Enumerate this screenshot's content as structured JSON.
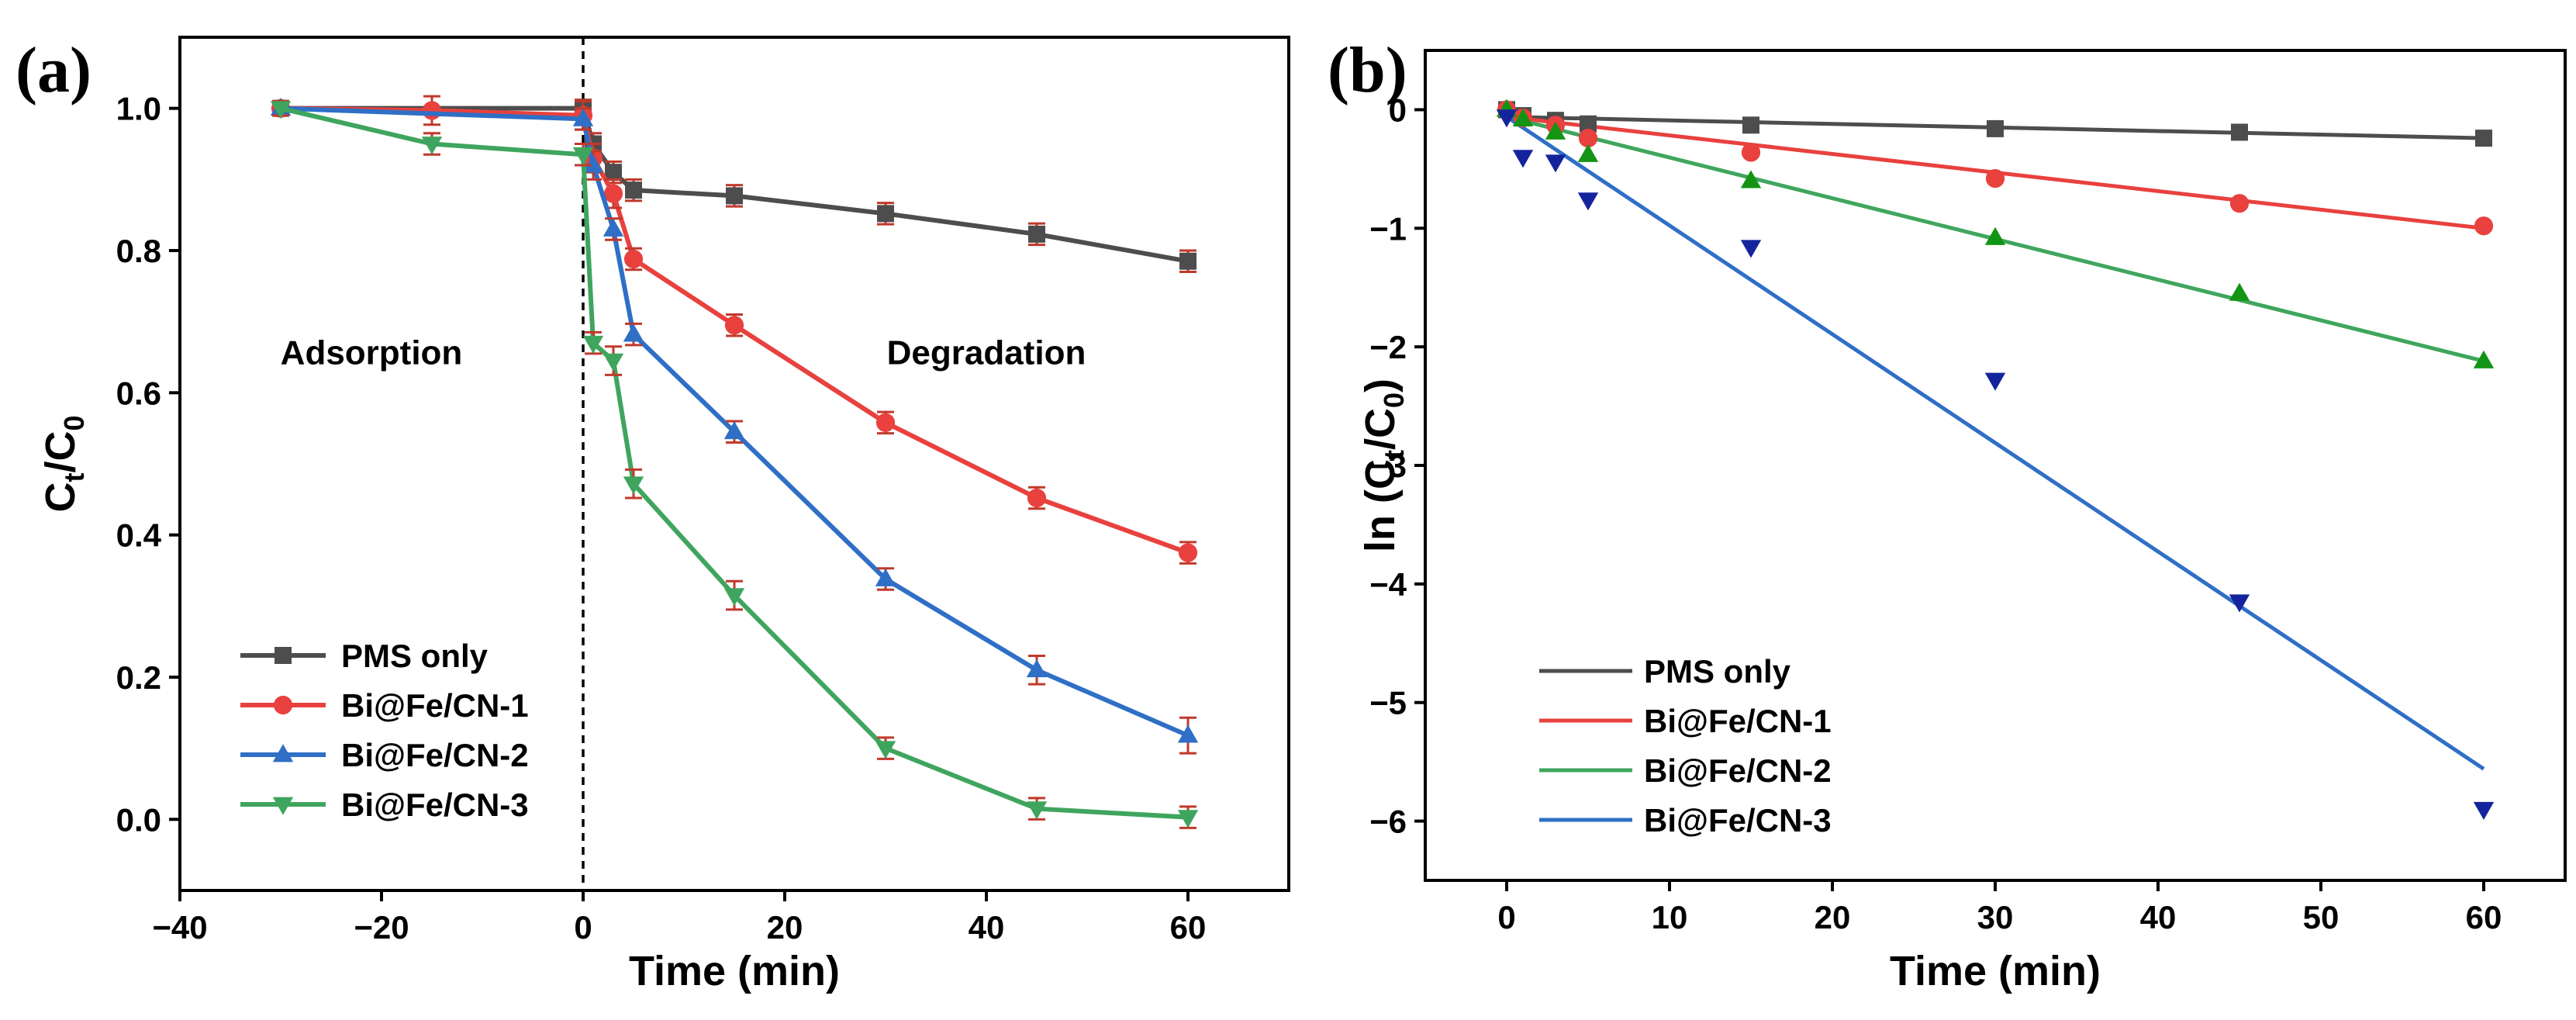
{
  "chart_data": [
    {
      "panel_label": "(a)",
      "type": "line",
      "xlabel": "Time (min)",
      "ylabel": {
        "main": "C",
        "sub1": "t",
        "mid": "/C",
        "sub2": "0"
      },
      "xlim": [
        -40,
        70
      ],
      "ylim": [
        -0.1,
        1.1
      ],
      "xticks": [
        -40,
        -20,
        0,
        20,
        40,
        60
      ],
      "xtick_labels": [
        "−40",
        "−20",
        "0",
        "20",
        "40",
        "60"
      ],
      "yticks": [
        0.0,
        0.2,
        0.4,
        0.6,
        0.8,
        1.0
      ],
      "ytick_labels": [
        "0.0",
        "0.2",
        "0.4",
        "0.6",
        "0.8",
        "1.0"
      ],
      "divider_x": 0,
      "annotations": [
        {
          "text": "Adsorption",
          "x": -21,
          "y": 0.64
        },
        {
          "text": "Degradation",
          "x": 40,
          "y": 0.64
        }
      ],
      "legend_position": "bottom-left",
      "series": [
        {
          "name": "PMS only",
          "color": "#4d4d4d",
          "marker": "square",
          "x": [
            -30,
            0,
            1,
            3,
            5,
            15,
            30,
            45,
            60
          ],
          "y": [
            1.0,
            1.0,
            0.95,
            0.91,
            0.885,
            0.877,
            0.852,
            0.823,
            0.785
          ],
          "err": [
            0.01,
            0.012,
            0.015,
            0.015,
            0.015,
            0.015,
            0.015,
            0.015,
            0.015
          ]
        },
        {
          "name": "Bi@Fe/CN-1",
          "color": "#e8413e",
          "marker": "circle",
          "x": [
            -30,
            -15,
            0,
            1,
            3,
            5,
            15,
            30,
            45,
            60
          ],
          "y": [
            1.0,
            0.997,
            0.99,
            0.93,
            0.88,
            0.788,
            0.695,
            0.558,
            0.452,
            0.375
          ],
          "err": [
            0.01,
            0.02,
            0.02,
            0.02,
            0.02,
            0.015,
            0.015,
            0.015,
            0.015,
            0.015
          ]
        },
        {
          "name": "Bi@Fe/CN-2",
          "color": "#2f6fc6",
          "marker": "triangle-up",
          "x": [
            -30,
            0,
            1,
            3,
            5,
            15,
            30,
            45,
            60
          ],
          "y": [
            1.0,
            0.985,
            0.92,
            0.83,
            0.682,
            0.545,
            0.338,
            0.21,
            0.118
          ],
          "err": [
            0.01,
            0.015,
            0.02,
            0.015,
            0.015,
            0.015,
            0.015,
            0.02,
            0.025
          ]
        },
        {
          "name": "Bi@Fe/CN-3",
          "color": "#3fa55e",
          "marker": "triangle-down",
          "x": [
            -30,
            -15,
            0,
            1,
            3,
            5,
            15,
            30,
            45,
            60
          ],
          "y": [
            1.0,
            0.95,
            0.935,
            0.67,
            0.645,
            0.472,
            0.315,
            0.1,
            0.015,
            0.003
          ],
          "err": [
            0.01,
            0.015,
            0.015,
            0.015,
            0.02,
            0.02,
            0.02,
            0.015,
            0.015,
            0.015
          ]
        }
      ]
    },
    {
      "panel_label": "(b)",
      "type": "scatter",
      "xlabel": "Time (min)",
      "ylabel": {
        "main": "ln (C",
        "sub1": "t",
        "mid": "/C",
        "sub2": "0",
        "end": ")"
      },
      "xlim": [
        -5,
        65
      ],
      "ylim": [
        -6.5,
        0.5
      ],
      "xticks": [
        0,
        10,
        20,
        30,
        40,
        50,
        60
      ],
      "xtick_labels": [
        "0",
        "10",
        "20",
        "30",
        "40",
        "50",
        "60"
      ],
      "yticks": [
        0,
        -1,
        -2,
        -3,
        -4,
        -5,
        -6
      ],
      "ytick_labels": [
        "0",
        "−1",
        "−2",
        "−3",
        "−4",
        "−5",
        "−6"
      ],
      "legend_position": "bottom-left",
      "series": [
        {
          "name": "PMS only",
          "line_color": "#4d4d4d",
          "marker_color": "#4d4d4d",
          "marker": "square",
          "x": [
            0,
            1,
            3,
            5,
            15,
            30,
            45,
            60
          ],
          "y": [
            0,
            -0.05,
            -0.09,
            -0.12,
            -0.13,
            -0.16,
            -0.19,
            -0.24
          ],
          "fit": [
            [
              0,
              -0.06
            ],
            [
              60,
              -0.24
            ]
          ]
        },
        {
          "name": "Bi@Fe/CN-1",
          "line_color": "#e8413e",
          "marker_color": "#e8413e",
          "marker": "circle",
          "x": [
            0,
            1,
            3,
            5,
            15,
            30,
            45,
            60
          ],
          "y": [
            0,
            -0.07,
            -0.13,
            -0.24,
            -0.36,
            -0.58,
            -0.79,
            -0.98
          ],
          "fit": [
            [
              0,
              -0.06
            ],
            [
              60,
              -1.0
            ]
          ]
        },
        {
          "name": "Bi@Fe/CN-2",
          "line_color": "#3fa55e",
          "marker_color": "#149414",
          "marker": "triangle-up",
          "x": [
            0,
            1,
            3,
            5,
            15,
            30,
            45,
            60
          ],
          "y": [
            0,
            -0.08,
            -0.19,
            -0.38,
            -0.6,
            -1.08,
            -1.55,
            -2.12
          ],
          "fit": [
            [
              0,
              -0.06
            ],
            [
              60,
              -2.12
            ]
          ]
        },
        {
          "name": "Bi@Fe/CN-3",
          "line_color": "#2f6fc6",
          "marker_color": "#14249c",
          "marker": "triangle-down",
          "x": [
            0,
            1,
            3,
            5,
            15,
            30,
            45,
            60
          ],
          "y": [
            -0.06,
            -0.4,
            -0.44,
            -0.76,
            -1.16,
            -2.28,
            -4.15,
            -5.9
          ],
          "fit": [
            [
              0,
              -0.06
            ],
            [
              60,
              -5.56
            ]
          ]
        }
      ]
    }
  ]
}
